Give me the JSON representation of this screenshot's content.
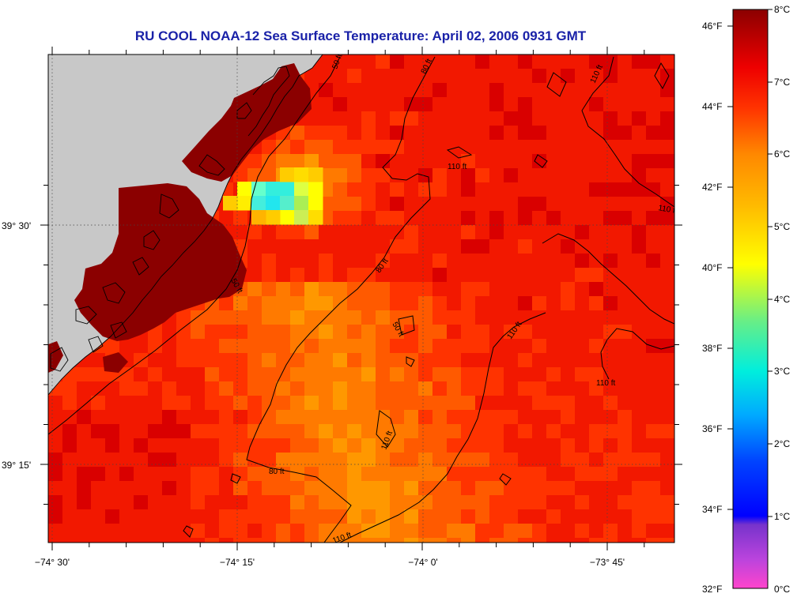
{
  "title": "RU COOL  NOAA-12  Sea Surface Temperature:  April 02, 2006 0931 GMT",
  "longitude_labels": [
    "−74° 30'",
    "−74° 15'",
    "−74° 0'",
    "−73° 45'"
  ],
  "latitude_labels": [
    "39° 30'",
    "39° 15'"
  ],
  "colorbar": {
    "fahrenheit_labels": [
      "46°F",
      "44°F",
      "42°F",
      "40°F",
      "38°F",
      "36°F",
      "34°F",
      "32°F"
    ],
    "celsius_labels": [
      "8°C",
      "7°C",
      "6°C",
      "5°C",
      "4°C",
      "3°C",
      "2°C",
      "1°C",
      "0°C"
    ],
    "range_celsius": [
      0,
      8
    ],
    "colors": [
      "#ff44cc",
      "#7733cc",
      "#0000ff",
      "#00a0ff",
      "#00eedd",
      "#99ee55",
      "#ffff00",
      "#ffaa00",
      "#ff6600",
      "#ff2200",
      "#e60000",
      "#8b0000"
    ]
  },
  "contours": [
    {
      "label": "50 ft"
    },
    {
      "label": "80 ft"
    },
    {
      "label": "110 ft"
    }
  ],
  "colors": {
    "land": "#c8c8c8",
    "title": "#1a22a8"
  }
}
